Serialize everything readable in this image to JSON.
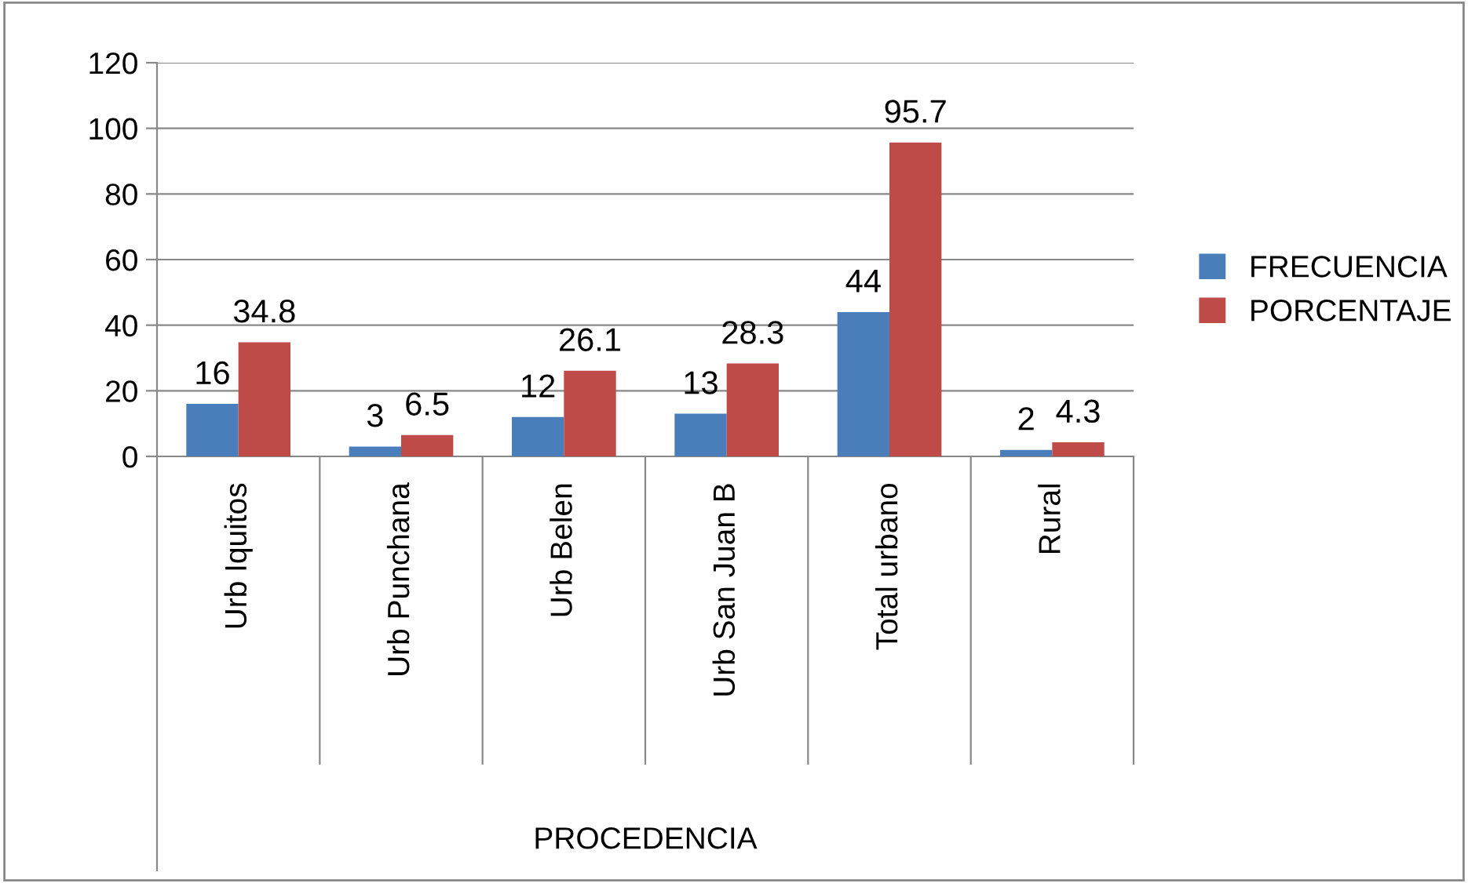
{
  "chart_data": {
    "type": "bar",
    "xlabel": "PROCEDENCIA",
    "categories": [
      "Urb Iquitos",
      "Urb Punchana",
      "Urb Belen",
      "Urb San Juan B",
      "Total urbano",
      "Rural"
    ],
    "series": [
      {
        "name": "FRECUENCIA",
        "color": "#4a7ebb",
        "values": [
          16,
          3,
          12,
          13,
          44,
          2
        ]
      },
      {
        "name": "PORCENTAJE",
        "color": "#be4b48",
        "values": [
          34.8,
          6.5,
          26.1,
          28.3,
          95.7,
          4.3
        ]
      }
    ],
    "ylim": [
      0,
      120
    ],
    "yticks": [
      0,
      20,
      40,
      60,
      80,
      100,
      120
    ],
    "grid": "y",
    "legend": "right",
    "data_labels": true
  }
}
